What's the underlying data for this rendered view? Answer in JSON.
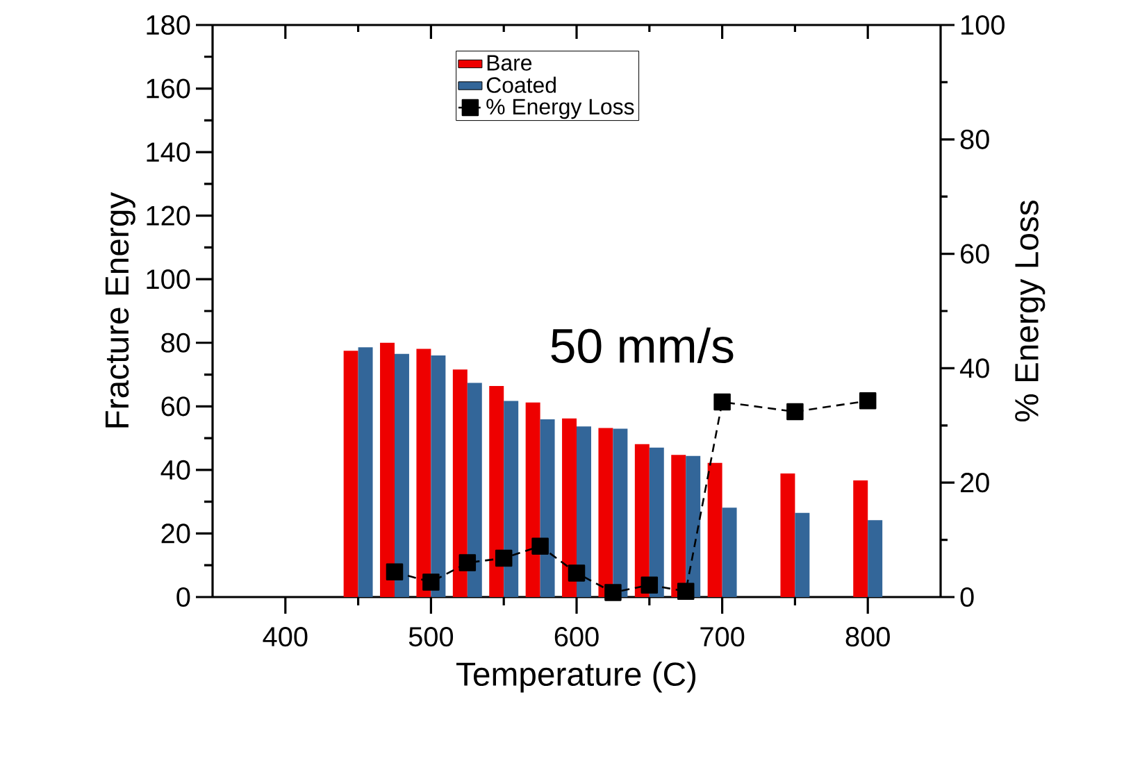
{
  "chart_data": {
    "type": "bar",
    "xlabel": "Temperature (C)",
    "ylabel": "Fracture Energy",
    "y2label": "% Energy Loss",
    "x": [
      450,
      475,
      500,
      525,
      550,
      575,
      600,
      625,
      650,
      675,
      700,
      750,
      800
    ],
    "series": [
      {
        "name": "Bare",
        "color": "#ee0000",
        "values": [
          77.5,
          80.0,
          78.1,
          71.6,
          66.4,
          61.2,
          56.2,
          53.2,
          48.1,
          44.7,
          42.2,
          38.9,
          36.7
        ]
      },
      {
        "name": "Coated",
        "color": "#336699",
        "values": [
          78.6,
          76.5,
          76.0,
          67.4,
          61.7,
          55.9,
          53.7,
          53.0,
          47.0,
          44.4,
          28.1,
          26.5,
          24.2
        ]
      },
      {
        "name": "% Energy Loss",
        "type": "line",
        "axis": "y2",
        "color": "#000000",
        "marker": "square",
        "line_style": "dashed",
        "x": [
          475,
          500,
          525,
          550,
          575,
          600,
          625,
          650,
          675,
          700,
          750,
          800
        ],
        "values": [
          4.4,
          2.6,
          6.0,
          6.8,
          8.9,
          4.2,
          0.8,
          2.1,
          1.0,
          34.1,
          32.4,
          34.3
        ]
      }
    ],
    "xlim": [
      350,
      850
    ],
    "xticks": [
      400,
      500,
      600,
      700,
      800
    ],
    "ylim": [
      0,
      180
    ],
    "yticks": [
      0,
      20,
      40,
      60,
      80,
      100,
      120,
      140,
      160,
      180
    ],
    "y2lim": [
      0,
      100
    ],
    "y2ticks": [
      0,
      20,
      40,
      60,
      80,
      100
    ],
    "legend": "top",
    "grid": false,
    "annotations": [
      "50 mm/s"
    ]
  }
}
